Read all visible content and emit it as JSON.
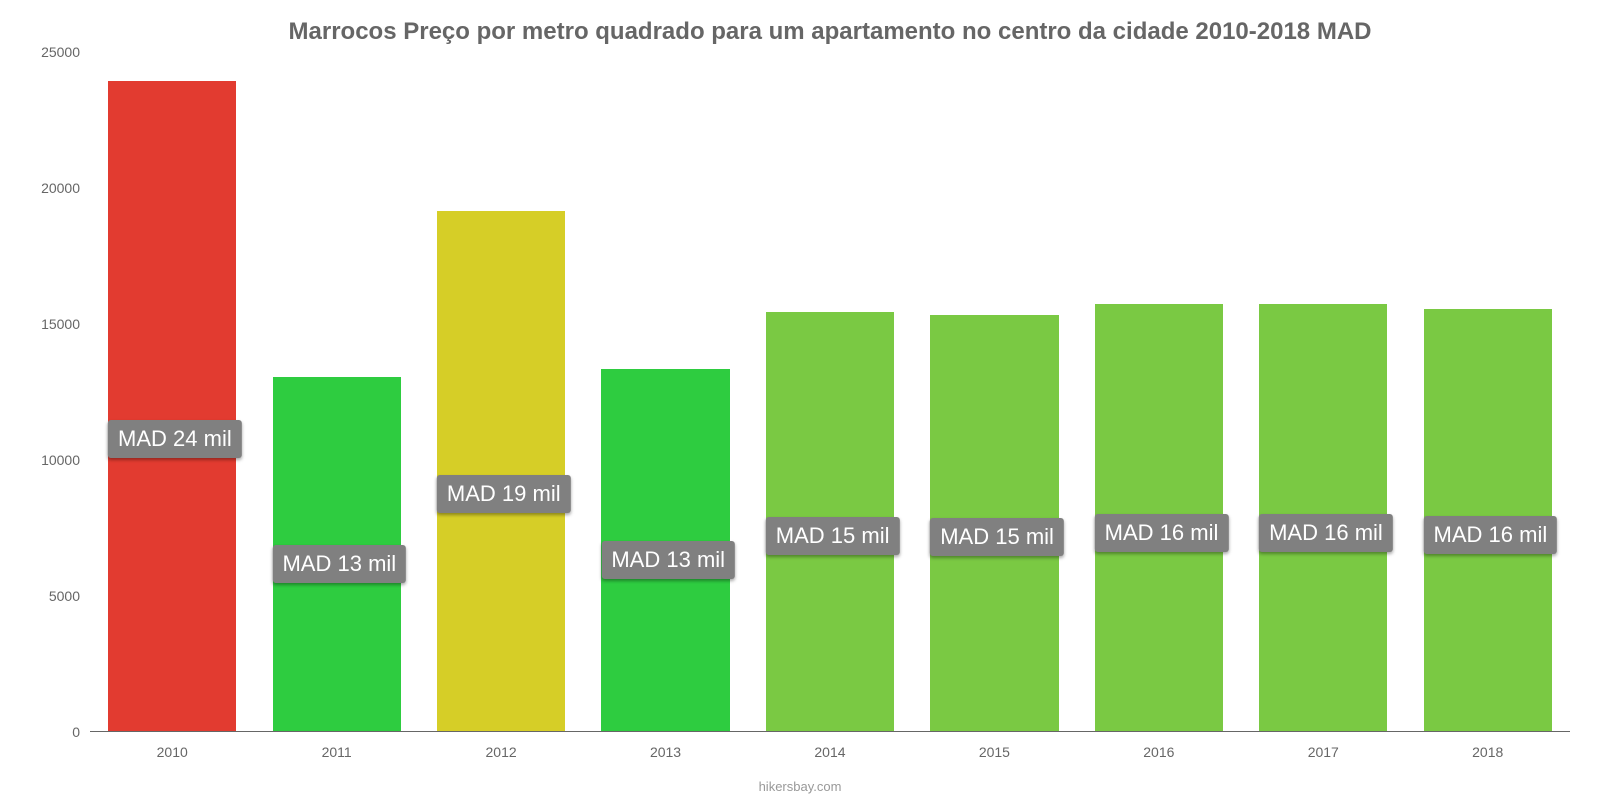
{
  "chart": {
    "type": "bar",
    "title": "Marrocos Preço por metro quadrado para um apartamento no centro da cidade 2010-2018 MAD",
    "title_color": "#666666",
    "title_fontsize": 24,
    "background_color": "#ffffff",
    "axis_color": "#666666",
    "categories": [
      "2010",
      "2011",
      "2012",
      "2013",
      "2014",
      "2015",
      "2016",
      "2017",
      "2018"
    ],
    "values": [
      23900,
      13000,
      19100,
      13300,
      15400,
      15300,
      15700,
      15700,
      15500
    ],
    "value_labels": [
      "MAD 24 mil",
      "MAD 13 mil",
      "MAD 19 mil",
      "MAD 13 mil",
      "MAD 15 mil",
      "MAD 15 mil",
      "MAD 16 mil",
      "MAD 16 mil",
      "MAD 16 mil"
    ],
    "bar_colors": [
      "#e23b30",
      "#2ecc40",
      "#d6ce27",
      "#2ecc40",
      "#7ac943",
      "#7ac943",
      "#7ac943",
      "#7ac943",
      "#7ac943"
    ],
    "ylim": [
      0,
      25000
    ],
    "yticks": [
      0,
      5000,
      10000,
      15000,
      20000,
      25000
    ],
    "ytick_labels": [
      "0",
      "5000",
      "10000",
      "15000",
      "20000",
      "25000"
    ],
    "bar_width_pct": 78,
    "label_box_bg": "#808080",
    "label_box_text_color": "#ffffff",
    "label_fontsize": 22,
    "xlabel_fontsize": 14,
    "ylabel_fontsize": 14,
    "source_text": "hikersbay.com",
    "source_color": "#999999"
  }
}
